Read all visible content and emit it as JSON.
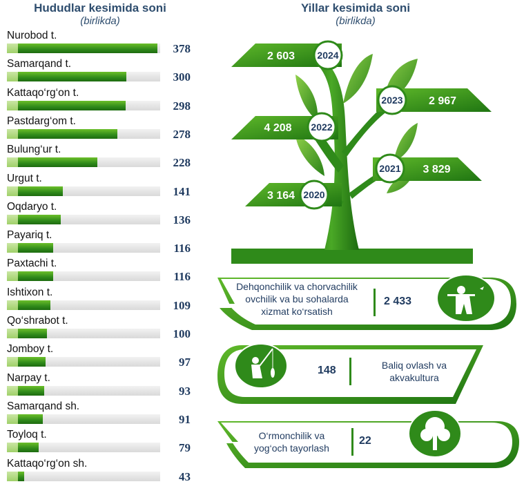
{
  "left": {
    "title": "Hududlar kesimida soni",
    "subtitle": "(birlikda)"
  },
  "right": {
    "title": "Yillar kesimida soni",
    "subtitle": "(birlikda)"
  },
  "categories_panel": [
    {
      "text_lines": [
        "Dehqonchilik va chorvachilik",
        "ovchilik va bu sohalarda",
        "xizmat ko‘rsatish"
      ],
      "value": "2 433",
      "icon": "hunter-icon"
    },
    {
      "text_lines": [
        "Baliq ovlash va",
        "akvakultura"
      ],
      "value": "148",
      "icon": "fishing-icon"
    },
    {
      "text_lines": [
        "O‘rmonchilik va",
        "yog‘och tayorlash"
      ],
      "value": "22",
      "icon": "trees-icon"
    }
  ],
  "colors": {
    "green_dark": "#2f8a1a",
    "green_light": "#6cbf2a",
    "navy": "#1f3a5f"
  },
  "chart_data": [
    {
      "type": "bar",
      "title": "Hududlar kesimida soni",
      "subtitle": "(birlikda)",
      "categories": [
        "Nurobod t.",
        "Samarqand t.",
        "Kattaqo‘rg‘on t.",
        "Pastdarg‘om t.",
        "Bulung‘ur t.",
        "Urgut t.",
        "Oqdaryo t.",
        "Payariq t.",
        "Paxtachi t.",
        "Ishtixon t.",
        "Qo‘shrabot t.",
        "Jomboy t.",
        "Narpay t.",
        "Samarqand sh.",
        "Toyloq t.",
        "Kattaqo‘rg‘on sh."
      ],
      "values": [
        378,
        300,
        298,
        278,
        228,
        141,
        136,
        116,
        116,
        109,
        100,
        97,
        93,
        91,
        79,
        43
      ]
    },
    {
      "type": "bar",
      "title": "Yillar kesimida soni",
      "subtitle": "(birlikda)",
      "categories": [
        "2020",
        "2021",
        "2022",
        "2023",
        "2024"
      ],
      "values": [
        3164,
        3829,
        4208,
        2967,
        2603
      ],
      "value_labels": [
        "3 164",
        "3 829",
        "4 208",
        "2 967",
        "2 603"
      ]
    }
  ]
}
